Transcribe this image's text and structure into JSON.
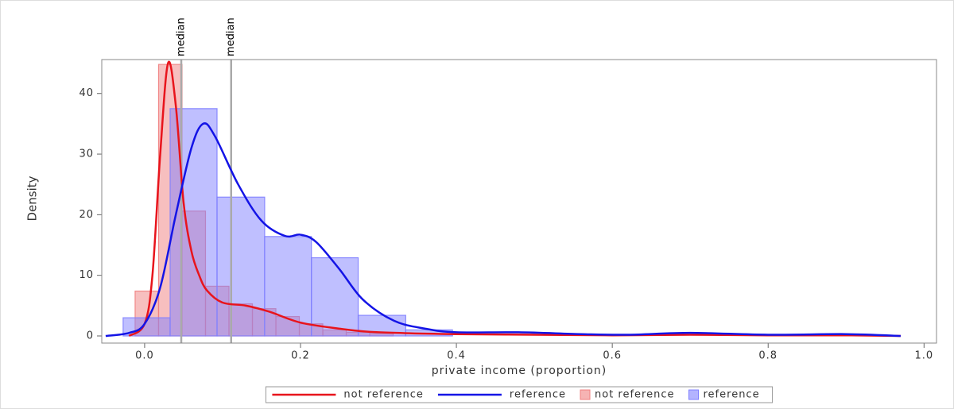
{
  "chart_data": {
    "type": "histogram",
    "x_label": "private income (proportion)",
    "y_label": "Density",
    "xlim": [
      -0.055,
      1.016
    ],
    "ylim": [
      -1.18,
      45.6
    ],
    "xticks": [
      {
        "value": 0,
        "label": "0.0"
      },
      0.2,
      0.4,
      0.6,
      0.8,
      {
        "value": 1,
        "label": "1.0"
      }
    ],
    "yticks": [
      0,
      10,
      20,
      30,
      40
    ],
    "annotations": [
      {
        "label": "median",
        "x": 0.047
      },
      {
        "label": "median",
        "x": 0.111
      }
    ],
    "series": [
      {
        "name": "not reference",
        "kind": "line",
        "color": "#e8141c",
        "x": [
          -0.02,
          0.0,
          0.01,
          0.02,
          0.03,
          0.04,
          0.05,
          0.06,
          0.07,
          0.08,
          0.1,
          0.13,
          0.16,
          0.2,
          0.25,
          0.3,
          0.4,
          0.5,
          0.6,
          0.7,
          0.8,
          0.9,
          0.97
        ],
        "values": [
          0,
          2,
          10,
          30,
          45,
          38,
          22,
          14,
          10,
          7.5,
          5.5,
          5,
          4,
          2.2,
          1.2,
          0.6,
          0.3,
          0.2,
          0.1,
          0.2,
          0.1,
          0.1,
          0
        ]
      },
      {
        "name": "reference",
        "kind": "line",
        "color": "#1414e6",
        "x": [
          -0.05,
          -0.02,
          0.0,
          0.02,
          0.04,
          0.06,
          0.075,
          0.09,
          0.12,
          0.15,
          0.18,
          0.2,
          0.22,
          0.25,
          0.28,
          0.32,
          0.36,
          0.4,
          0.48,
          0.56,
          0.62,
          0.7,
          0.8,
          0.9,
          0.97
        ],
        "values": [
          0,
          0.5,
          2,
          8,
          20,
          31,
          35,
          33,
          25,
          19,
          16.5,
          16.7,
          15.5,
          11,
          6,
          2.5,
          1.2,
          0.6,
          0.6,
          0.3,
          0.2,
          0.5,
          0.2,
          0.3,
          0
        ]
      },
      {
        "name": "not reference",
        "kind": "histogram",
        "color": "#f08080",
        "bins": [
          -0.0122,
          0.0179,
          0.048,
          0.0781,
          0.1082,
          0.1383,
          0.1684,
          0.1985,
          0.2286,
          0.2587,
          0.2888,
          0.3189
        ],
        "values": [
          7.4,
          44.8,
          20.6,
          8.2,
          5.3,
          4.5,
          3.2,
          2,
          1,
          0.6,
          0.4
        ]
      },
      {
        "name": "reference",
        "kind": "histogram",
        "color": "#8080ff",
        "bins": [
          -0.0276,
          0.0327,
          0.0929,
          0.154,
          0.214,
          0.274,
          0.335,
          0.395
        ],
        "values": [
          3,
          37.5,
          22.9,
          16.4,
          12.9,
          3.4,
          1.0
        ]
      }
    ]
  }
}
